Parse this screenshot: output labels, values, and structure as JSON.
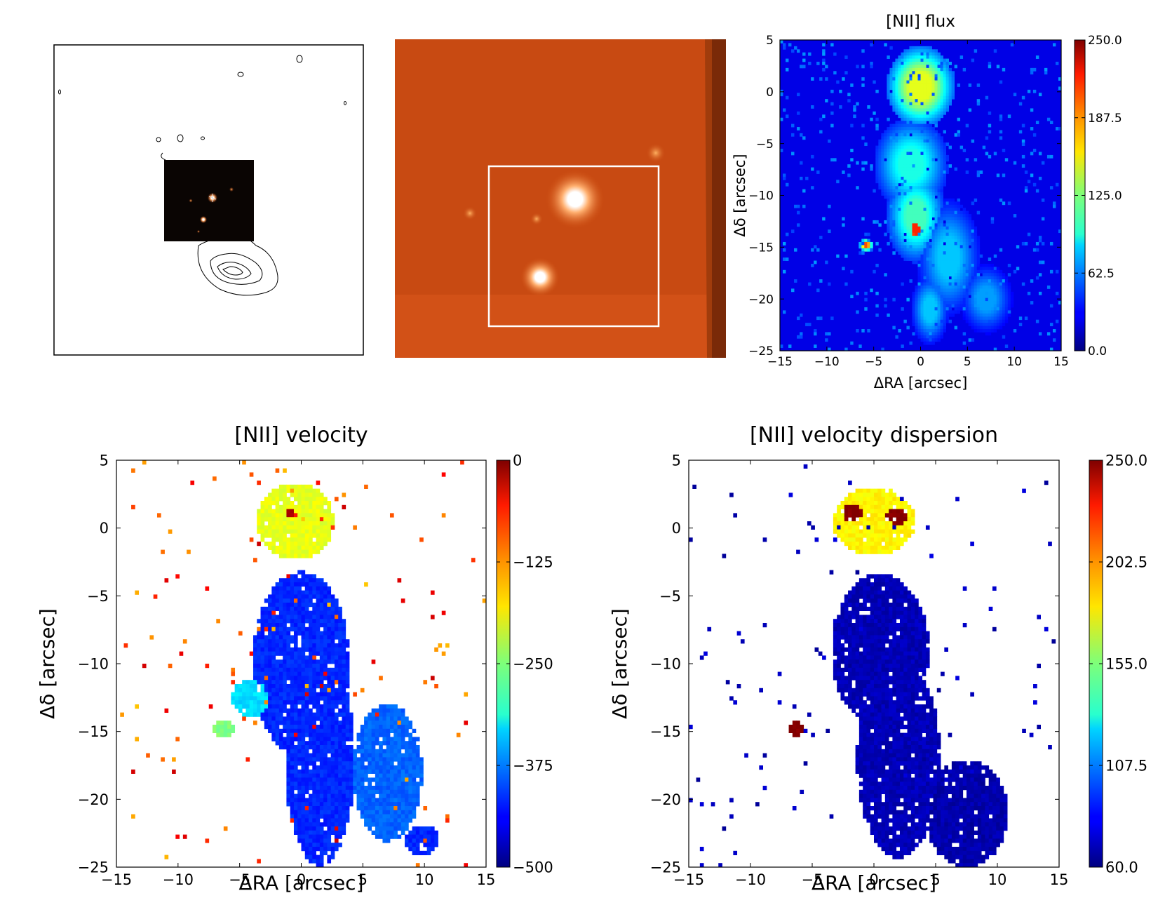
{
  "colors": {
    "jet_low": "#00007f",
    "jet_high": "#7f0000",
    "image_bg": "#c84a12",
    "box": "#ffffff"
  },
  "panels": {
    "contour_image": {
      "description_icon": "contour-map-icon"
    },
    "broadband_image": {
      "description_icon": "galaxy-field-icon"
    }
  },
  "chart_data": [
    {
      "type": "heatmap",
      "title": "[NII] flux",
      "xlabel": "ΔRA [arcsec]",
      "ylabel": "Δδ [arcsec]",
      "xlim": [
        -15,
        15
      ],
      "ylim": [
        -25,
        5
      ],
      "xticks": [
        "−15",
        "−10",
        "−5",
        "0",
        "5",
        "10",
        "15"
      ],
      "yticks": [
        "5",
        "0",
        "−5",
        "−10",
        "−15",
        "−20",
        "−25"
      ],
      "colorbar": {
        "min": 0.0,
        "max": 250.0,
        "ticks": [
          "250.0",
          "187.5",
          "125.0",
          "62.5",
          "0.0"
        ]
      },
      "background": "filled",
      "blobs": [
        {
          "x": 0,
          "y": 0.5,
          "sx": 1.8,
          "sy": 2.0,
          "v": 250
        },
        {
          "x": 0,
          "y": 0.5,
          "sx": 3.2,
          "sy": 3.5,
          "v": 150
        },
        {
          "x": -0.5,
          "y": -13,
          "sx": 1.4,
          "sy": 2.0,
          "v": 210
        },
        {
          "x": -0.5,
          "y": -12,
          "sx": 2.8,
          "sy": 4.0,
          "v": 110
        },
        {
          "x": -1,
          "y": -7,
          "sx": 3.5,
          "sy": 4.0,
          "v": 100
        },
        {
          "x": 3,
          "y": -16,
          "sx": 3.0,
          "sy": 5.0,
          "v": 80
        },
        {
          "x": 7,
          "y": -20,
          "sx": 2.5,
          "sy": 3.0,
          "v": 70
        },
        {
          "x": -5.8,
          "y": -14.8,
          "sx": 0.6,
          "sy": 0.5,
          "v": 200
        },
        {
          "x": 1,
          "y": -21,
          "sx": 1.8,
          "sy": 3.0,
          "v": 80
        }
      ]
    },
    {
      "type": "heatmap",
      "title": "[NII] velocity",
      "xlabel": "ΔRA [arcsec]",
      "ylabel": "Δδ [arcsec]",
      "xlim": [
        -15,
        15
      ],
      "ylim": [
        -25,
        5
      ],
      "xticks": [
        "−15",
        "−10",
        "−5",
        "0",
        "5",
        "10",
        "15"
      ],
      "yticks": [
        "5",
        "0",
        "−5",
        "−10",
        "−15",
        "−20",
        "−25"
      ],
      "colorbar": {
        "min": -500,
        "max": 0,
        "ticks": [
          "0",
          "−125",
          "−250",
          "−375",
          "−500"
        ]
      },
      "background": "white",
      "blobs": [
        {
          "x": -0.8,
          "y": 1.0,
          "sx": 1.3,
          "sy": 1.2,
          "v": -20
        },
        {
          "x": -0.5,
          "y": 0.5,
          "sx": 2.8,
          "sy": 2.5,
          "v": -200
        },
        {
          "x": 0,
          "y": -10,
          "sx": 3.5,
          "sy": 6.0,
          "v": -420
        },
        {
          "x": 1.5,
          "y": -17,
          "sx": 2.5,
          "sy": 7.0,
          "v": -420
        },
        {
          "x": 7,
          "y": -18,
          "sx": 2.5,
          "sy": 4.5,
          "v": -390
        },
        {
          "x": 9.8,
          "y": -23,
          "sx": 1.2,
          "sy": 1.0,
          "v": -420
        },
        {
          "x": -4,
          "y": -12.5,
          "sx": 1.5,
          "sy": 1.2,
          "v": -330
        },
        {
          "x": -6.3,
          "y": -14.8,
          "sx": 0.7,
          "sy": 0.5,
          "v": -250
        }
      ]
    },
    {
      "type": "heatmap",
      "title": "[NII] velocity dispersion",
      "xlabel": "ΔRA [arcsec]",
      "ylabel": "Δδ [arcsec]",
      "xlim": [
        -15,
        15
      ],
      "ylim": [
        -25,
        5
      ],
      "xticks": [
        "−15",
        "−10",
        "−5",
        "0",
        "5",
        "10",
        "15"
      ],
      "yticks": [
        "5",
        "0",
        "−5",
        "−10",
        "−15",
        "−20",
        "−25"
      ],
      "colorbar": {
        "min": 60.0,
        "max": 250.0,
        "ticks": [
          "250.0",
          "202.5",
          "155.0",
          "107.5",
          "60.0"
        ]
      },
      "background": "white",
      "blobs": [
        {
          "x": -1.5,
          "y": 1.0,
          "sx": 1.2,
          "sy": 1.0,
          "v": 250
        },
        {
          "x": 1.5,
          "y": 0.8,
          "sx": 1.3,
          "sy": 1.0,
          "v": 250
        },
        {
          "x": 0,
          "y": 0.5,
          "sx": 3.0,
          "sy": 2.2,
          "v": 180
        },
        {
          "x": 0.5,
          "y": -9,
          "sx": 3.5,
          "sy": 5.0,
          "v": 70
        },
        {
          "x": 2,
          "y": -17,
          "sx": 3.0,
          "sy": 6.5,
          "v": 70
        },
        {
          "x": 7.5,
          "y": -21,
          "sx": 3.0,
          "sy": 3.5,
          "v": 68
        },
        {
          "x": -6.3,
          "y": -14.8,
          "sx": 0.6,
          "sy": 0.45,
          "v": 250
        }
      ]
    }
  ]
}
